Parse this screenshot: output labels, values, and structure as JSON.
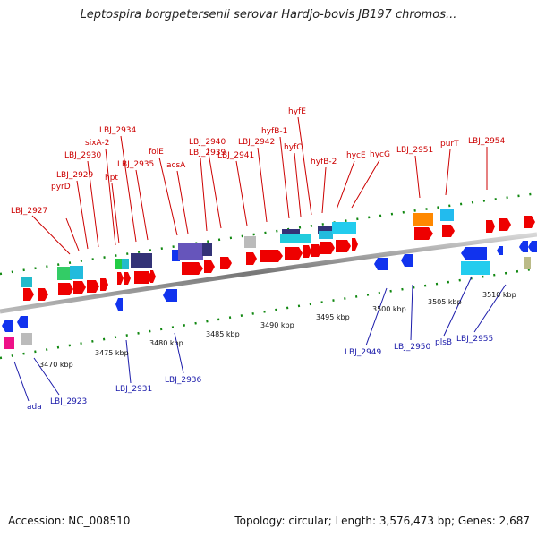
{
  "title": "Leptospira borgpetersenii serovar Hardjo-bovis JB197 chromos...",
  "accession": "Accession: NC_008510",
  "topology": "Topology: circular; Length: 3,576,473 bp; Genes: 2,687",
  "colors": {
    "forward_gene": "#ee0000",
    "reverse_gene": "#1133ee",
    "forward_label": "#cc0000",
    "reverse_label": "#1a1aaa",
    "backbone": "#888888",
    "tick": "#118811"
  },
  "kbp_labels": [
    "3470 kbp",
    "3475 kbp",
    "3480 kbp",
    "3485 kbp",
    "3490 kbp",
    "3495 kbp",
    "3500 kbp",
    "3505 kbp",
    "3510 kbp"
  ],
  "forward_labels": [
    "LBJ_2927",
    "pyrD",
    "LBJ_2929",
    "LBJ_2930",
    "sixA-2",
    "hpt",
    "LBJ_2934",
    "LBJ_2935",
    "folE",
    "acsA",
    "LBJ_2939",
    "LBJ_2940",
    "LBJ_2941",
    "LBJ_2942",
    "hyfB-1",
    "hyfE",
    "hyfC",
    "hyfB-2",
    "hycE",
    "hycG",
    "LBJ_2951",
    "purT",
    "LBJ_2954"
  ],
  "reverse_labels": [
    "ada",
    "LBJ_2923",
    "LBJ_2931",
    "LBJ_2936",
    "LBJ_2949",
    "LBJ_2950",
    "plsB",
    "LBJ_2955"
  ]
}
